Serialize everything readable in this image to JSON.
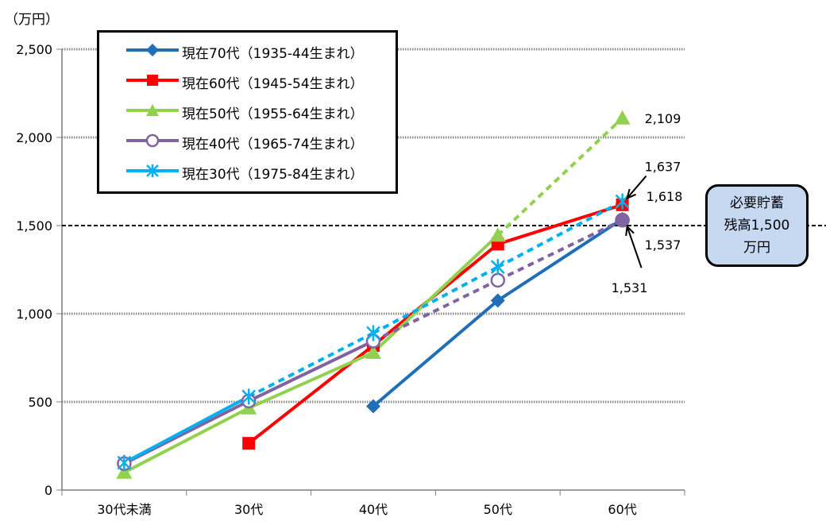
{
  "chart_data": {
    "type": "line",
    "unit_label": "（万円）",
    "categories": [
      "30代未満",
      "30代",
      "40代",
      "50代",
      "60代"
    ],
    "ylim": [
      0,
      2500
    ],
    "yticks": [
      0,
      500,
      1000,
      1500,
      2000,
      2500
    ],
    "ytick_labels": [
      "0",
      "500",
      "1,000",
      "1,500",
      "2,000",
      "2,500"
    ],
    "grid": true,
    "legend_position": "top-left",
    "reference_line": {
      "value": 1500,
      "style": "dashed"
    },
    "series": [
      {
        "name": "現在70代（1935-44生まれ）",
        "color": "#1f6fb8",
        "marker": "diamond",
        "values": [
          null,
          null,
          475,
          1075,
          1537
        ],
        "projected_from": null
      },
      {
        "name": "現在60代（1945-54生まれ）",
        "color": "#ff0000",
        "marker": "square",
        "values": [
          null,
          265,
          820,
          1395,
          1618
        ],
        "projected_from": null
      },
      {
        "name": "現在50代（1955-64生まれ）",
        "color": "#92d050",
        "marker": "triangle",
        "values": [
          100,
          465,
          780,
          1445,
          2109
        ],
        "projected_from": 3
      },
      {
        "name": "現在40代（1965-74生まれ）",
        "color": "#8064a2",
        "marker": "circle",
        "values": [
          150,
          505,
          845,
          1190,
          1531
        ],
        "projected_from": 2
      },
      {
        "name": "現在30代（1975-84生まれ）",
        "color": "#00b0f0",
        "marker": "asterisk",
        "values": [
          155,
          530,
          890,
          1265,
          1637
        ],
        "projected_from": 1
      }
    ],
    "value_labels": [
      {
        "text": "2,109",
        "series": 2
      },
      {
        "text": "1,637",
        "series": 4
      },
      {
        "text": "1,618",
        "series": 1
      },
      {
        "text": "1,537",
        "series": 0
      },
      {
        "text": "1,531",
        "series": 3
      }
    ]
  },
  "callout": {
    "lines": [
      "必要貯蓄",
      "残高1,500",
      "万円"
    ]
  }
}
